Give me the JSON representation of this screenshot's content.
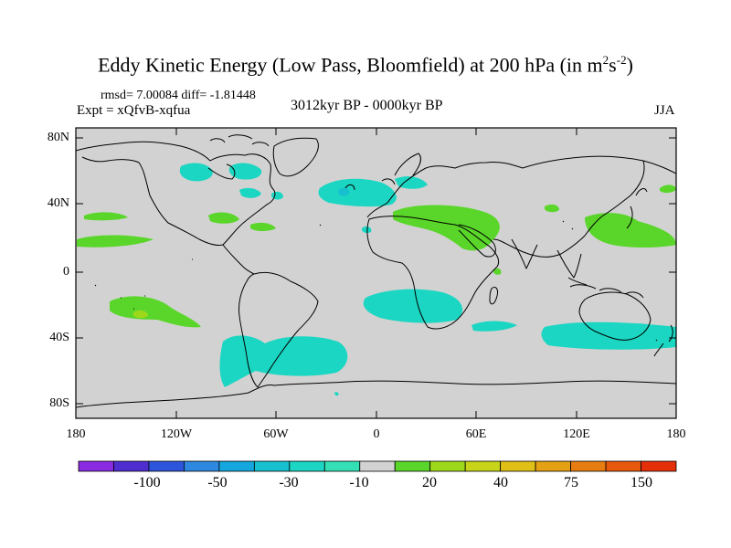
{
  "map": {
    "title": "Eddy Kinetic Energy (Low Pass, Bloomfield) at 200 hPa (in m",
    "title_sup1": "2",
    "title_mid": "s",
    "title_sup2": "-2",
    "title_close": ")",
    "stats": "rmsd= 7.00084 diff= -1.81448",
    "experiment": "Expt = xQfvB-xqfua",
    "period": "3012kyr BP - 0000kyr BP",
    "season": "JJA",
    "lat_labels": [
      "80N",
      "40N",
      "0",
      "40S",
      "80S"
    ],
    "lon_labels": [
      "180",
      "120W",
      "60W",
      "0",
      "60E",
      "120E",
      "180"
    ],
    "background_color": "#d2d2d2",
    "coast_color": "#000000"
  },
  "colorbar": {
    "labels": [
      "-100",
      "-50",
      "-30",
      "-10",
      "20",
      "40",
      "75",
      "150"
    ],
    "colors": [
      "#8a2be2",
      "#4f2ed0",
      "#2d55db",
      "#2e88e0",
      "#14a7dd",
      "#17c0cf",
      "#1bd6c2",
      "#35dfb6",
      "#d2d2d2",
      "#5ad62a",
      "#9ed81a",
      "#c7d417",
      "#e0c016",
      "#e4a114",
      "#e77c10",
      "#e8580d",
      "#e52f09"
    ]
  }
}
